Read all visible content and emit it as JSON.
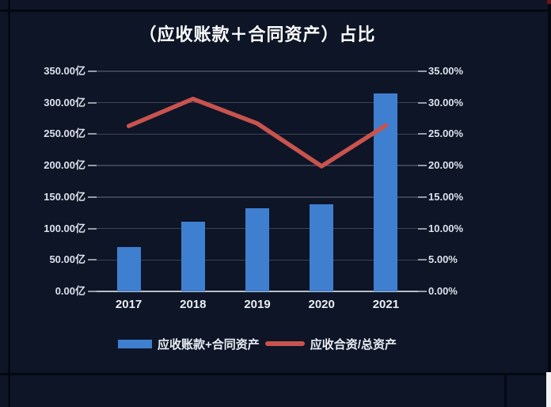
{
  "window": {
    "background_color": "#0D1527",
    "grid_line_color": "#040910",
    "right_edge_color": "#05080F",
    "scrollbar_corner_color": "#F2F2F2",
    "top_right_accent_color": "#6B1412"
  },
  "chart_data": {
    "type": "bar",
    "title": "（应收账款＋合同资产）占比",
    "categories": [
      "2017",
      "2018",
      "2019",
      "2020",
      "2021"
    ],
    "series": [
      {
        "name": "应收账款+合同资产",
        "type": "bar",
        "axis": "left",
        "unit": "亿",
        "color": "#3F7FD0",
        "values": [
          70,
          111,
          132,
          138,
          315
        ]
      },
      {
        "name": "应收合资/总资产",
        "type": "line",
        "axis": "right",
        "unit": "%",
        "color": "#C9534E",
        "values": [
          26.3,
          30.6,
          26.7,
          19.9,
          26.4
        ]
      }
    ],
    "left_axis": {
      "min": 0,
      "max": 350,
      "step": 50,
      "ticks": [
        "0.00亿",
        "50.00亿",
        "100.00亿",
        "150.00亿",
        "200.00亿",
        "250.00亿",
        "300.00亿",
        "350.00亿"
      ]
    },
    "right_axis": {
      "min": 0,
      "max": 35,
      "step": 5,
      "ticks": [
        "0.00%",
        "5.00%",
        "10.00%",
        "15.00%",
        "20.00%",
        "25.00%",
        "30.00%",
        "35.00%"
      ]
    },
    "grid": true,
    "legend_position": "bottom"
  }
}
